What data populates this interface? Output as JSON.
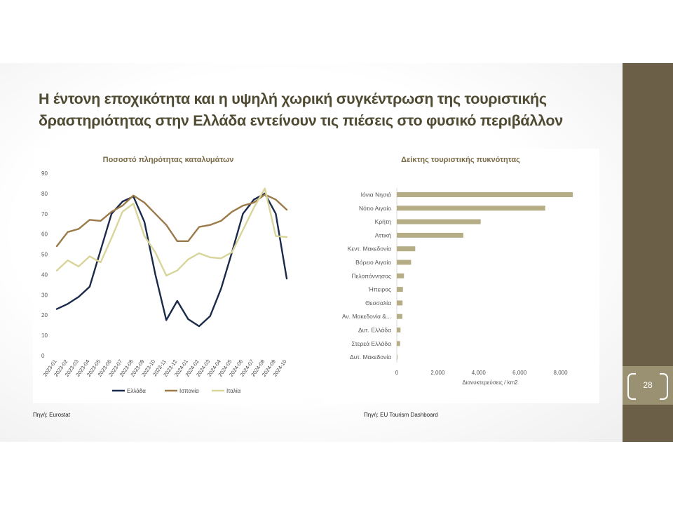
{
  "slide": {
    "title_line1": "Η έντονη εποχικότητα και η υψηλή χωρική συγκέντρωση της τουριστικής",
    "title_line2": "δραστηριότητας στην Ελλάδα εντείνουν τις πιέσεις στο φυσικό περιβάλλον",
    "page_number": "28",
    "source_left": "Πηγή: Eurostat",
    "source_right": "Πηγή: EU Tourism Dashboard",
    "colors": {
      "sidebar": "#6b5f47",
      "sidebar_band": "#9a9172",
      "title": "#4f4a32"
    }
  },
  "chart_data": [
    {
      "type": "line",
      "title": "Ποσοστό πληρότητας καταλυμάτων",
      "xlabel": "",
      "ylabel": "",
      "categories": [
        "2023-01",
        "2023-02",
        "2023-03",
        "2023-04",
        "2023-05",
        "2023-06",
        "2023-07",
        "2023-08",
        "2023-09",
        "2023-10",
        "2023-11",
        "2023-12",
        "2024-01",
        "2024-02",
        "2024-03",
        "2024-04",
        "2024-05",
        "2024-06",
        "2024-07",
        "2024-08",
        "2024-09",
        "2024-10"
      ],
      "ylim": [
        0,
        90
      ],
      "yticks": [
        0,
        10,
        20,
        30,
        40,
        50,
        60,
        70,
        80,
        90
      ],
      "grid": false,
      "legend": "bottom",
      "series": [
        {
          "name": "Ελλάδα",
          "color": "#1b2a4a",
          "values": [
            23,
            25.5,
            29,
            34,
            52,
            70,
            76,
            78.5,
            66,
            40,
            17.5,
            27,
            18,
            14.5,
            19.5,
            33,
            51,
            70,
            77,
            80,
            70,
            38
          ]
        },
        {
          "name": "Ισπανία",
          "color": "#9a7a48",
          "values": [
            54,
            61,
            62.5,
            67,
            66.5,
            71,
            74,
            79,
            75.5,
            70,
            64.5,
            56.5,
            56.5,
            63.5,
            64.5,
            66.5,
            71,
            74,
            75.5,
            79.5,
            77,
            72
          ]
        },
        {
          "name": "Ιταλία",
          "color": "#d8d59a",
          "values": [
            42,
            47,
            44,
            49,
            46,
            58,
            71,
            75,
            59,
            51,
            39.5,
            42,
            47.5,
            50.5,
            48.5,
            48,
            51,
            62,
            73,
            82.5,
            59,
            58.5
          ]
        }
      ]
    },
    {
      "type": "bar",
      "orientation": "horizontal",
      "title": "Δείκτης τουριστικής πυκνότητας",
      "xlabel": "Διανυκτερεύσεις / km2",
      "ylabel": "",
      "xlim": [
        0,
        8700
      ],
      "xticks": [
        "0",
        "2,000",
        "4,000",
        "6,000",
        "8,000"
      ],
      "xtick_values": [
        0,
        2000,
        4000,
        6000,
        8000
      ],
      "color": "#b5ad86",
      "categories": [
        "Ιόνια Νησιά",
        "Νότιο Αιγαίο",
        "Κρήτη",
        "Αττική",
        "Κεντ. Μακεδονία",
        "Βόρειο Αιγαίο",
        "Πελοπόννησος",
        "Ήπειρος",
        "Θεσσαλία",
        "Αν. Μακεδονία &...",
        "Δυτ. Ελλάδα",
        "Στερεά Ελλάδα",
        "Δυτ. Μακεδονία"
      ],
      "values": [
        8600,
        7250,
        4100,
        3250,
        900,
        700,
        350,
        300,
        280,
        270,
        180,
        160,
        30
      ]
    }
  ]
}
